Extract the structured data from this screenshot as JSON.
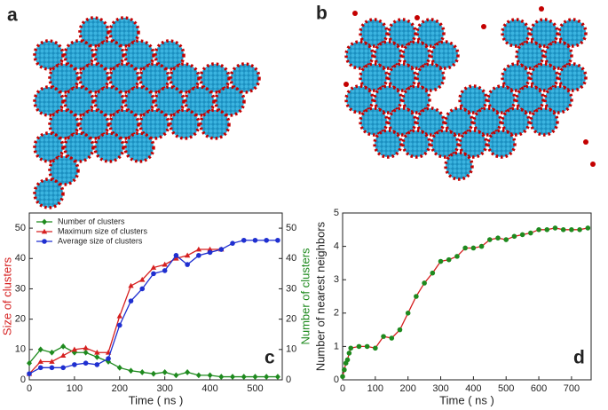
{
  "panel_labels": [
    "a",
    "b"
  ],
  "chart_data": [
    {
      "type": "line",
      "label": "c",
      "xlabel": "Time ( ns )",
      "ylabel": "Size of clusters",
      "ylabel_color": "#d62020",
      "y2label": "Number of clusters",
      "y2label_color": "#1e8a1e",
      "legend": "upper left",
      "xlim": [
        0,
        560
      ],
      "xticks": [
        0,
        100,
        200,
        300,
        400,
        500
      ],
      "ylim": [
        0,
        55
      ],
      "yticks": [
        0,
        10,
        20,
        30,
        40,
        50
      ],
      "y2lim": [
        0,
        55
      ],
      "y2ticks": [
        0,
        10,
        20,
        30,
        40,
        50
      ],
      "series": [
        {
          "name": "Number of clusters",
          "color": "#1e8a1e",
          "marker": "diamond",
          "axis": "y2",
          "x": [
            0,
            25,
            50,
            75,
            100,
            125,
            150,
            175,
            200,
            225,
            250,
            275,
            300,
            325,
            350,
            375,
            400,
            425,
            450,
            475,
            500,
            525,
            550
          ],
          "values": [
            5.5,
            10,
            9,
            11,
            9,
            9,
            7.5,
            6,
            4,
            3,
            2.5,
            2,
            2.5,
            1.5,
            2.5,
            1.5,
            1.5,
            1,
            1,
            1,
            1,
            1,
            1
          ]
        },
        {
          "name": "Maximum size of clusters",
          "color": "#d62020",
          "marker": "triangle",
          "x": [
            0,
            25,
            50,
            75,
            100,
            125,
            150,
            175,
            200,
            225,
            250,
            275,
            300,
            325,
            350,
            375,
            400,
            425
          ],
          "values": [
            2,
            6,
            6,
            8,
            10,
            10.5,
            9,
            9,
            21,
            31,
            33,
            37,
            38,
            40,
            41,
            43,
            43,
            43
          ]
        },
        {
          "name": "Average size of clusters",
          "color": "#1f2fd0",
          "marker": "circle",
          "x": [
            0,
            25,
            50,
            75,
            100,
            125,
            150,
            175,
            200,
            225,
            250,
            275,
            300,
            325,
            350,
            375,
            400,
            425,
            450,
            475,
            500,
            525,
            550
          ],
          "values": [
            2,
            4,
            4,
            4,
            5,
            5.5,
            5,
            7,
            18,
            26,
            30,
            35,
            36,
            41,
            38,
            41,
            42,
            43,
            45,
            46,
            46,
            46,
            46
          ]
        }
      ]
    },
    {
      "type": "line",
      "label": "d",
      "xlabel": "Time ( ns )",
      "ylabel": "Number of nearest neighbors",
      "xlim": [
        0,
        760
      ],
      "xticks": [
        0,
        100,
        200,
        300,
        400,
        500,
        600,
        700
      ],
      "ylim": [
        0,
        5
      ],
      "yticks": [
        0,
        1,
        2,
        3,
        4,
        5
      ],
      "series": [
        {
          "color": "#d62020",
          "marker": "circle",
          "marker_color": "#1e8a1e",
          "x": [
            0,
            5,
            10,
            15,
            20,
            25,
            50,
            75,
            100,
            125,
            150,
            175,
            200,
            225,
            250,
            275,
            300,
            325,
            350,
            375,
            400,
            425,
            450,
            475,
            500,
            525,
            550,
            575,
            600,
            625,
            650,
            675,
            700,
            725,
            750
          ],
          "values": [
            0.1,
            0.3,
            0.5,
            0.6,
            0.8,
            0.95,
            1.0,
            1.0,
            0.95,
            1.3,
            1.25,
            1.5,
            2.0,
            2.5,
            2.9,
            3.2,
            3.55,
            3.6,
            3.7,
            3.95,
            3.95,
            4.0,
            4.2,
            4.25,
            4.2,
            4.3,
            4.35,
            4.4,
            4.5,
            4.5,
            4.55,
            4.5,
            4.5,
            4.5,
            4.55
          ]
        }
      ]
    }
  ]
}
